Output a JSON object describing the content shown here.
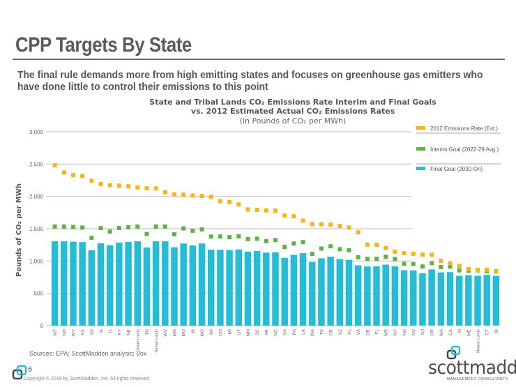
{
  "page": {
    "title": "CPP Targets By State",
    "subtitle": "The final rule demands more from high emitting states and focuses on greenhouse gas emitters who have done little to control their emissions to this point",
    "sources": "Sources:  EPA; ScottMadden analysis; Vox",
    "page_number": "6",
    "copyright": "Copyright © 2016 by ScottMadden,  Inc. All rights reserved.",
    "logo_name": "scottmadden",
    "logo_tagline": "MANAGEMENT CONSULTANTS"
  },
  "colors": {
    "emissions_2012": "#fbb416",
    "interim_goal": "#5cb446",
    "final_goal": "#27bcd6",
    "grid": "#c8c8c8",
    "text": "#555555"
  },
  "chart_data": {
    "type": "bar",
    "title_line1": "State and Tribal Lands CO₂ Emissions Rate Interim and Final Goals",
    "title_line2": "vs. 2012 Estimated Actual CO₂ Emissions Rates",
    "title_line3": "(in Pounds of CO₂ per MWh)",
    "xlabel": "",
    "ylabel": "Pounds of CO₂ per MWh",
    "ylim": [
      0,
      3000
    ],
    "yticks": [
      0,
      500,
      1000,
      1500,
      2000,
      2500,
      3000
    ],
    "ytick_labels": [
      "0",
      "500",
      "1,000",
      "1,500",
      "2,000",
      "2,500",
      "3,000"
    ],
    "grid": true,
    "legend_position": "top-right",
    "categories": [
      "MT",
      "ND",
      "WY",
      "KS",
      "SD",
      "IA",
      "IL",
      "KY",
      "NE",
      "Uintah Lands",
      "TN",
      "Navajo Lands",
      "WV",
      "MN",
      "MO",
      "IN",
      "MO",
      "WI",
      "CO",
      "MI",
      "UT",
      "NM",
      "SC",
      "AR",
      "NC",
      "GA",
      "PA",
      "LA",
      "WA",
      "TX",
      "OK",
      "AZ",
      "AL",
      "VA",
      "DE",
      "FL",
      "MS",
      "NY",
      "NH",
      "NV",
      "NJ",
      "OR",
      "MA",
      "CA",
      "RI",
      "ME",
      "Mojave Lands",
      "CT",
      "ID"
    ],
    "series": [
      {
        "name": "Final Goal (2030-On)",
        "kind": "bar",
        "color_key": "final_goal",
        "values": [
          1305,
          1305,
          1299,
          1293,
          1167,
          1275,
          1245,
          1286,
          1296,
          1305,
          1211,
          1305,
          1305,
          1213,
          1272,
          1242,
          1272,
          1176,
          1174,
          1169,
          1179,
          1146,
          1156,
          1130,
          1136,
          1049,
          1095,
          1121,
          983,
          1042,
          1068,
          1031,
          1018,
          934,
          916,
          919,
          945,
          918,
          858,
          855,
          812,
          871,
          824,
          828,
          771,
          781,
          771,
          786,
          771
        ]
      },
      {
        "name": "Interim Goal (2022-29 Avg.)",
        "kind": "marker",
        "color_key": "interim_goal",
        "values": [
          1534,
          1534,
          1526,
          1517,
          1360,
          1510,
          1456,
          1511,
          1522,
          1534,
          1419,
          1534,
          1534,
          1414,
          1505,
          1469,
          1490,
          1378,
          1380,
          1370,
          1382,
          1339,
          1345,
          1308,
          1324,
          1219,
          1270,
          1293,
          1111,
          1193,
          1228,
          1183,
          1167,
          1058,
          1034,
          1036,
          1065,
          1030,
          957,
          955,
          915,
          968,
          907,
          914,
          856,
          849,
          856,
          842,
          841
        ]
      },
      {
        "name": "2012 Emissions Rate (Est.)",
        "kind": "marker",
        "color_key": "emissions_2012",
        "values": [
          2481,
          2370,
          2329,
          2315,
          2242,
          2192,
          2174,
          2168,
          2156,
          2138,
          2125,
          2124,
          2064,
          2031,
          2027,
          2014,
          2006,
          1995,
          1927,
          1912,
          1875,
          1798,
          1792,
          1783,
          1780,
          1702,
          1693,
          1625,
          1571,
          1568,
          1563,
          1543,
          1518,
          1444,
          1254,
          1251,
          1202,
          1145,
          1123,
          1113,
          1099,
          1096,
          1004,
          966,
          925,
          874,
          863,
          866,
          837
        ]
      }
    ]
  }
}
